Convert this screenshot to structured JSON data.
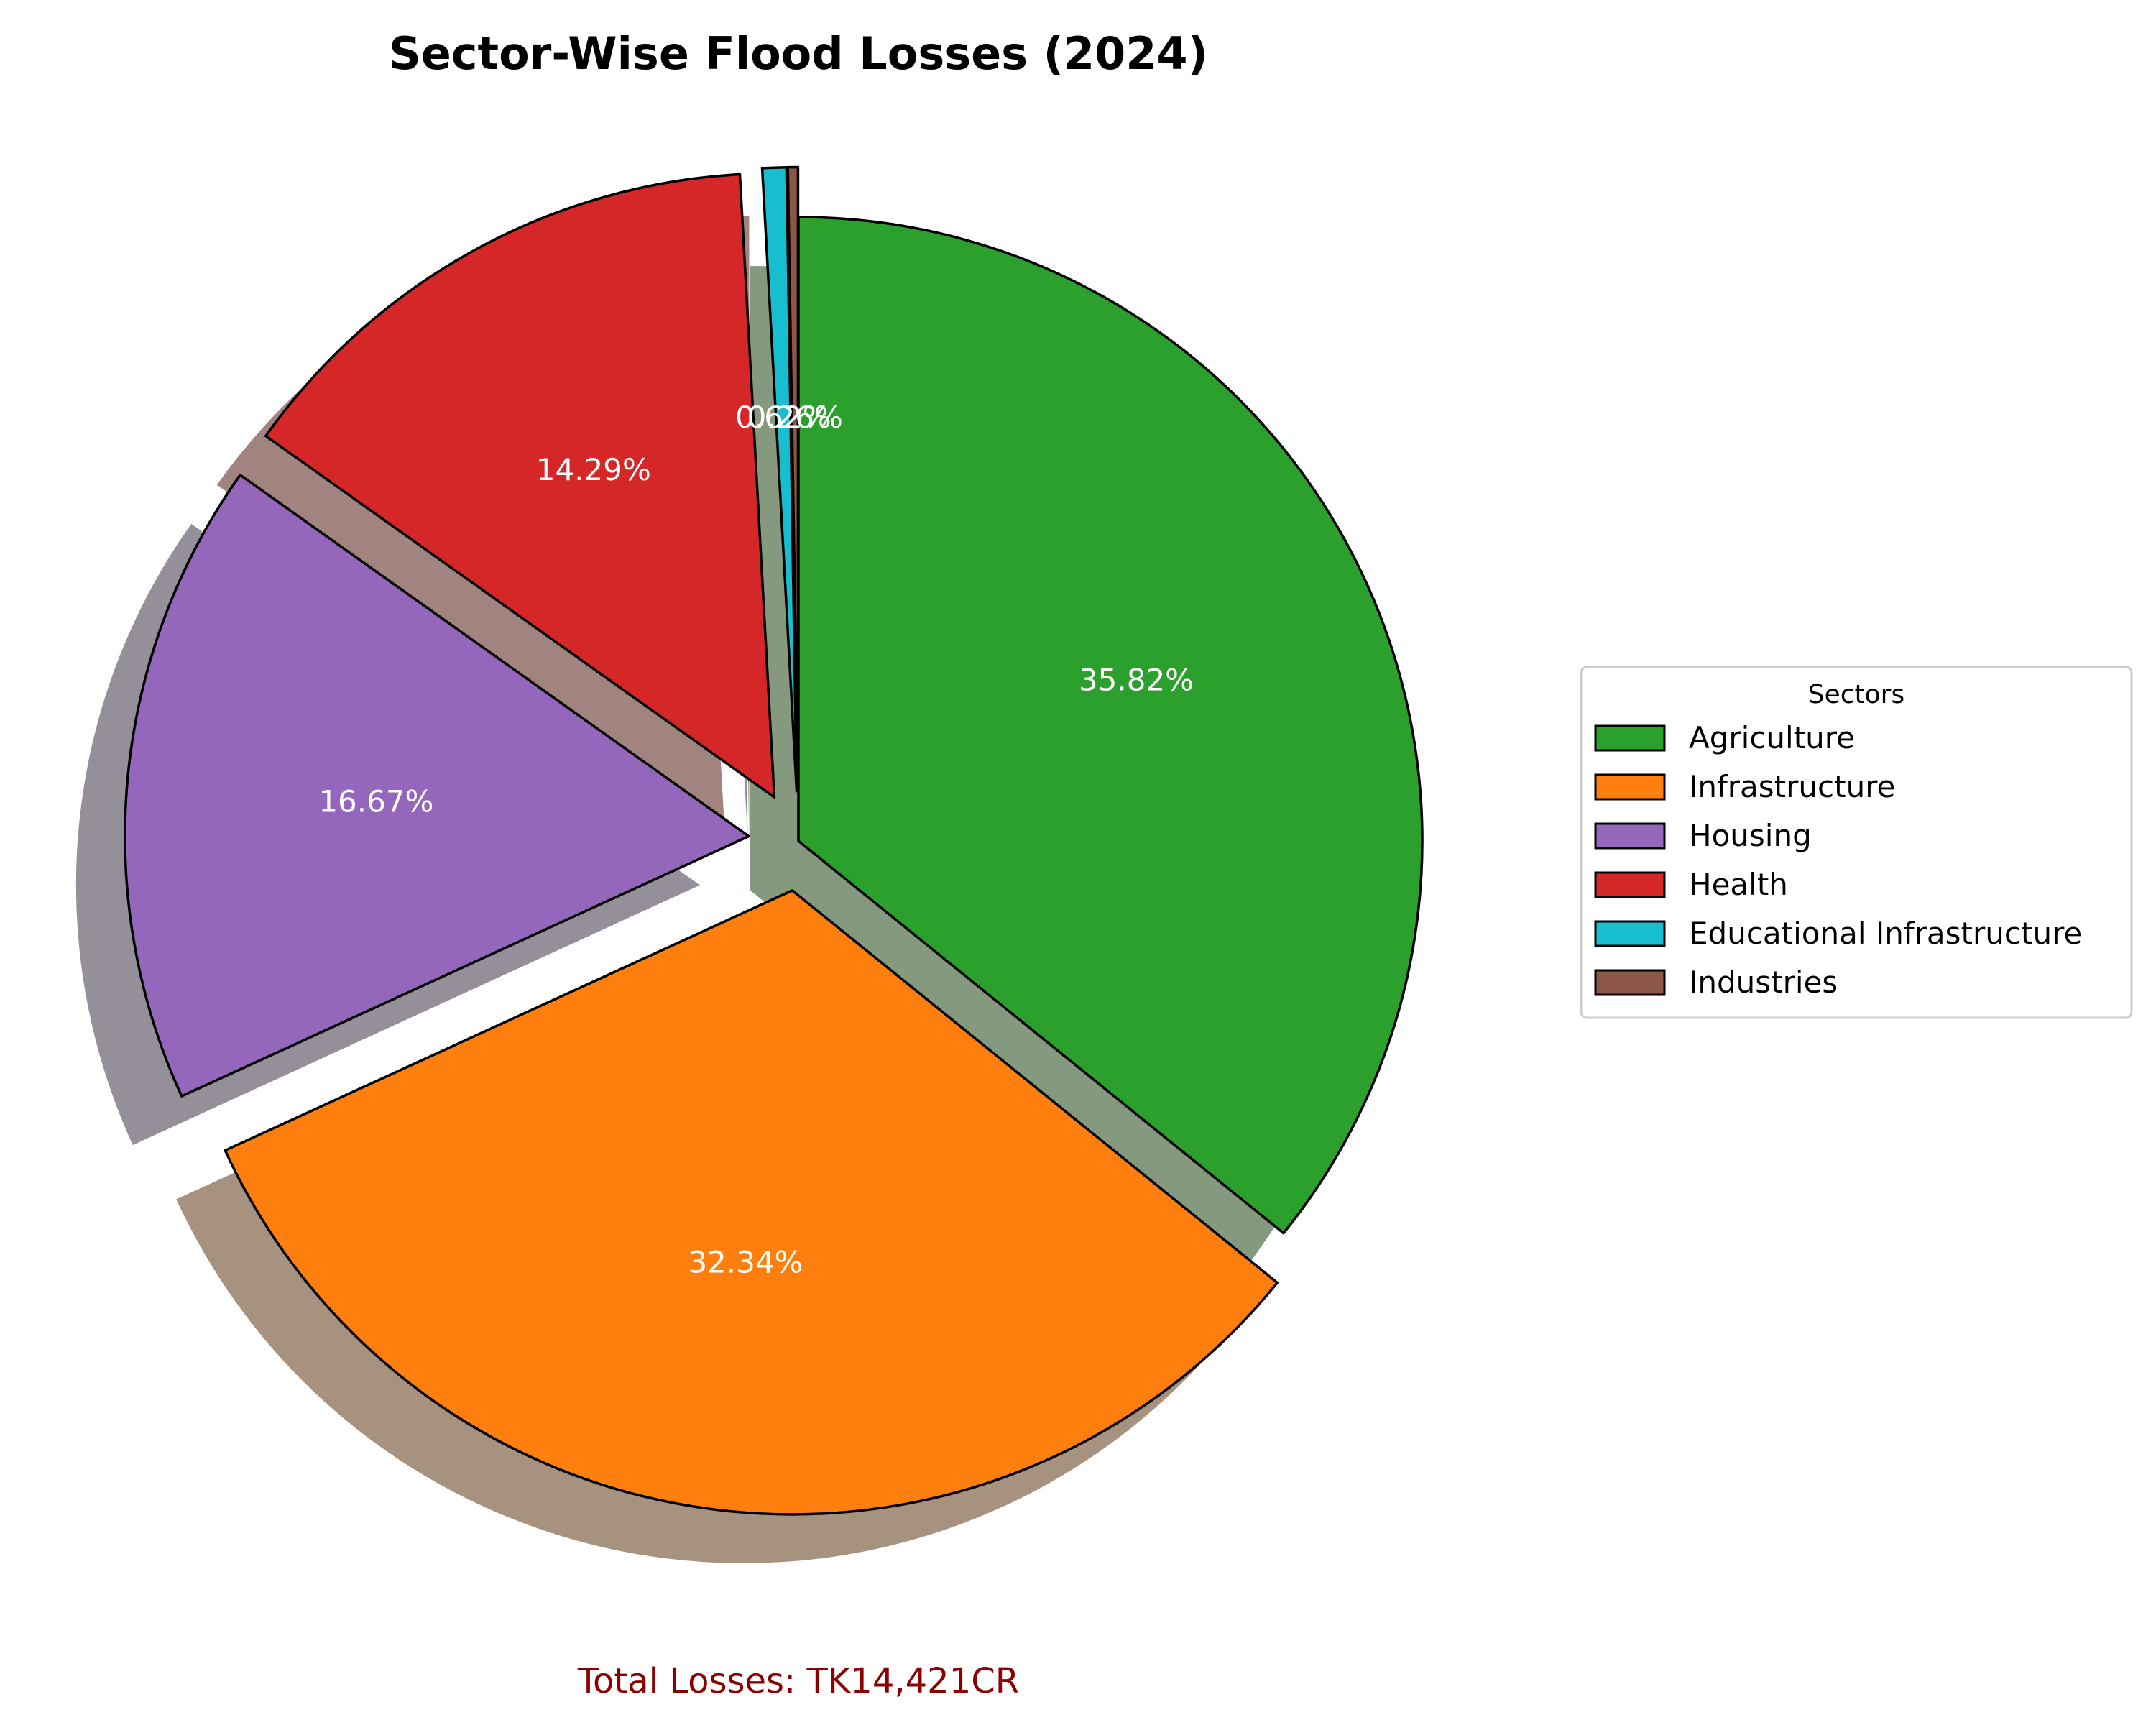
{
  "chart_data": {
    "type": "pie",
    "title": "Sector-Wise Flood Losses (2024)",
    "slices": [
      {
        "label": "Agriculture",
        "value": 35.82,
        "label_text": "35.82%",
        "color": "#2ca02c",
        "shadow": "#85997f",
        "explode": 0.0
      },
      {
        "label": "Infrastructure",
        "value": 32.34,
        "label_text": "32.34%",
        "color": "#ff7f0e",
        "shadow": "#a6927e",
        "explode": 0.08
      },
      {
        "label": "Housing",
        "value": 16.67,
        "label_text": "16.67%",
        "color": "#9467bd",
        "shadow": "#958f99",
        "explode": 0.08
      },
      {
        "label": "Health",
        "value": 14.29,
        "label_text": "14.29%",
        "color": "#d62728",
        "shadow": "#a1837f",
        "explode": 0.08
      },
      {
        "label": "Educational Infrastructure",
        "value": 0.62,
        "label_text": "0.62%",
        "color": "#17becf",
        "shadow": "#7f999c",
        "explode": 0.08
      },
      {
        "label": "Industries",
        "value": 0.26,
        "label_text": "0.26%",
        "color": "#8c564b",
        "shadow": "#a1837f",
        "explode": 0.08
      }
    ],
    "start_angle_deg": 90,
    "direction": "clockwise",
    "legend": {
      "title": "Sectors",
      "placement": "center-right"
    },
    "annotation": "Total Losses: TK14,421CR"
  }
}
